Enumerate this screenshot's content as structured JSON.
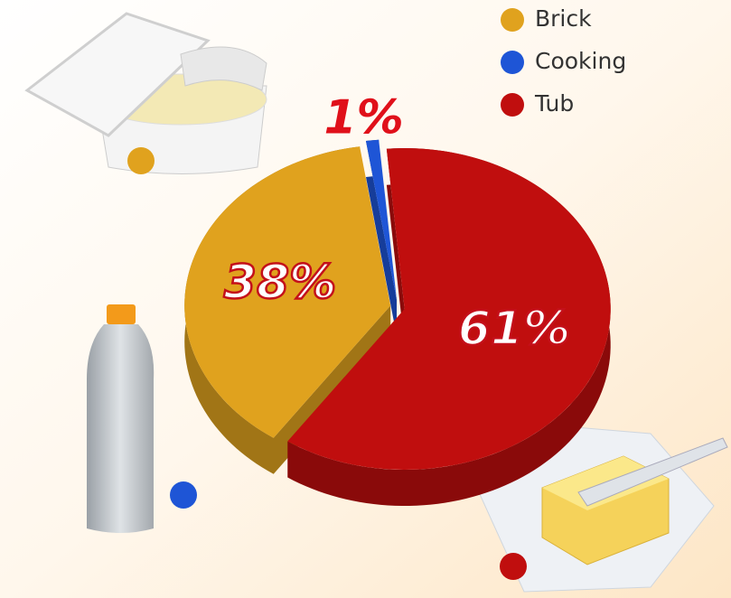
{
  "chart_data": {
    "type": "pie",
    "categories": [
      "Brick",
      "Cooking",
      "Tub"
    ],
    "values": [
      38,
      1,
      61
    ],
    "value_labels": [
      "38%",
      "1%",
      "61%"
    ],
    "colors": [
      "#e0a21e",
      "#1e55d6",
      "#c00e0e"
    ]
  }
}
